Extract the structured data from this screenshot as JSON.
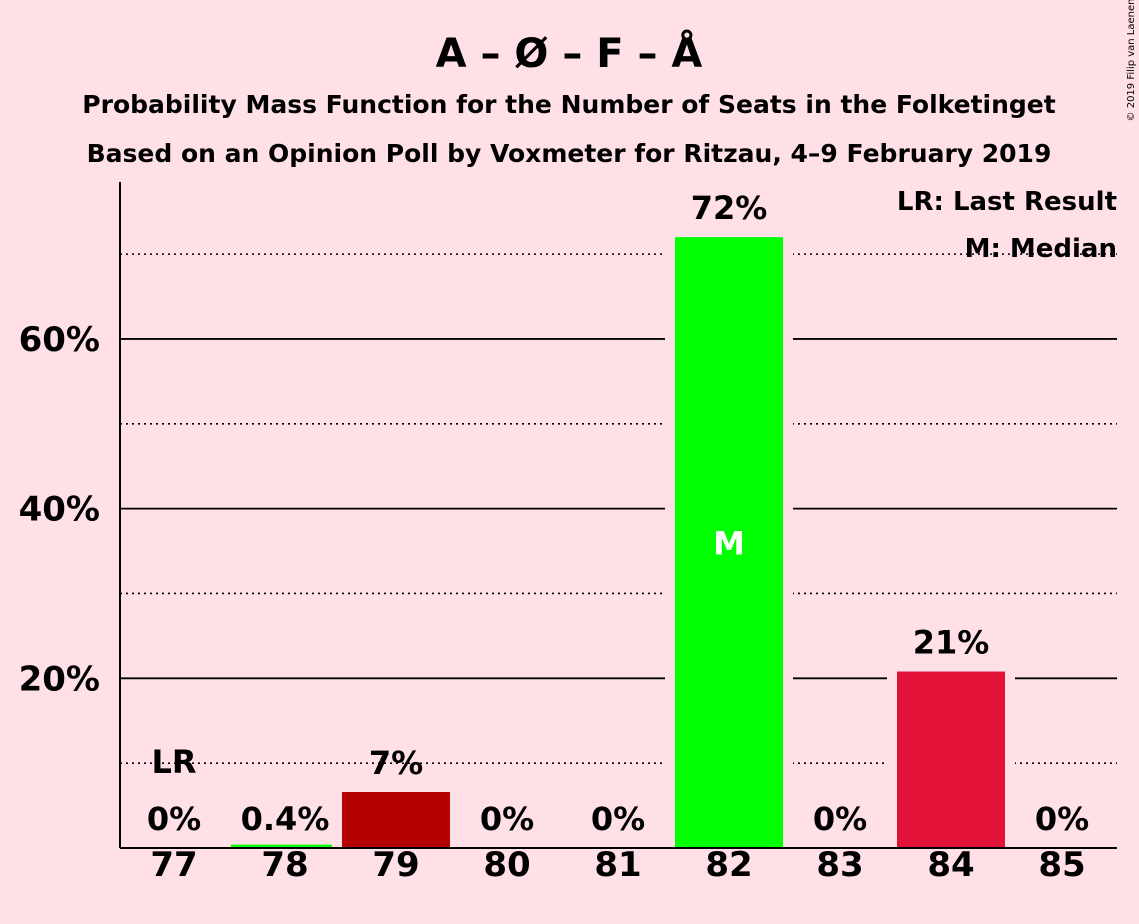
{
  "chart_data": {
    "type": "bar",
    "title": "A – Ø – F – Å",
    "subtitle_1": "Probability Mass Function for the Number of Seats in the Folketinget",
    "subtitle_2": "Based on an Opinion Poll by Voxmeter for Ritzau, 4–9 February 2019",
    "copyright": "© 2019 Filip van Laenen",
    "categories": [
      "77",
      "78",
      "79",
      "80",
      "81",
      "82",
      "83",
      "84",
      "85"
    ],
    "values": [
      0,
      0.4,
      6.6,
      0,
      0,
      72,
      0,
      20.8,
      0
    ],
    "value_labels": [
      "0%",
      "0.4%",
      "7%",
      "0%",
      "0%",
      "72%",
      "0%",
      "21%",
      "0%"
    ],
    "bar_colors": [
      "#00FF00",
      "#00FF00",
      "#B30000",
      "#00FF00",
      "#00FF00",
      "#00FF00",
      "#00FF00",
      "#E31238",
      "#00FF00"
    ],
    "ylim": [
      0,
      78.5
    ],
    "yticks": [
      20,
      40,
      60
    ],
    "ytick_labels": [
      "20%",
      "40%",
      "60%"
    ],
    "minor_gridlines": [
      10,
      30,
      50,
      70
    ],
    "last_result": {
      "category": "77",
      "label": "LR"
    },
    "median": {
      "category": "82",
      "label": "M"
    },
    "legend": {
      "position": "top-right",
      "items": [
        "LR: Last Result",
        "M: Median"
      ]
    },
    "colors": {
      "background": "#FFE0E6",
      "grid": "#000000"
    }
  }
}
